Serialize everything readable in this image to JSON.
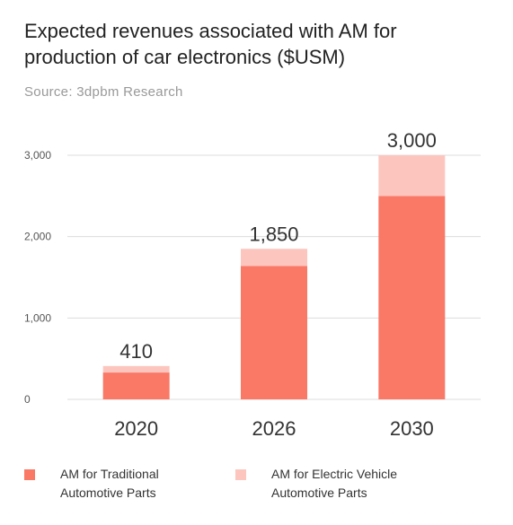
{
  "chart_data": {
    "type": "bar",
    "stacked": true,
    "title_lines": [
      "Expected revenues associated with AM for",
      "production of car electronics ($USM)"
    ],
    "subtitle": "Source: 3dpbm Research",
    "categories": [
      "2020",
      "2026",
      "2030"
    ],
    "totals": [
      "410",
      "1,850",
      "3,000"
    ],
    "series": [
      {
        "name_lines": [
          "AM for Traditional",
          "Automotive Parts"
        ],
        "values": [
          330,
          1640,
          2500
        ],
        "color": "#f97866"
      },
      {
        "name_lines": [
          "AM for Electric Vehicle",
          "Automotive Parts"
        ],
        "values": [
          80,
          210,
          500
        ],
        "color": "#fcc6bf"
      }
    ],
    "yticks": [
      "0",
      "1,000",
      "2,000",
      "3,000"
    ],
    "ylim": [
      0,
      3000
    ],
    "grid": true,
    "legend_position": "bottom"
  }
}
